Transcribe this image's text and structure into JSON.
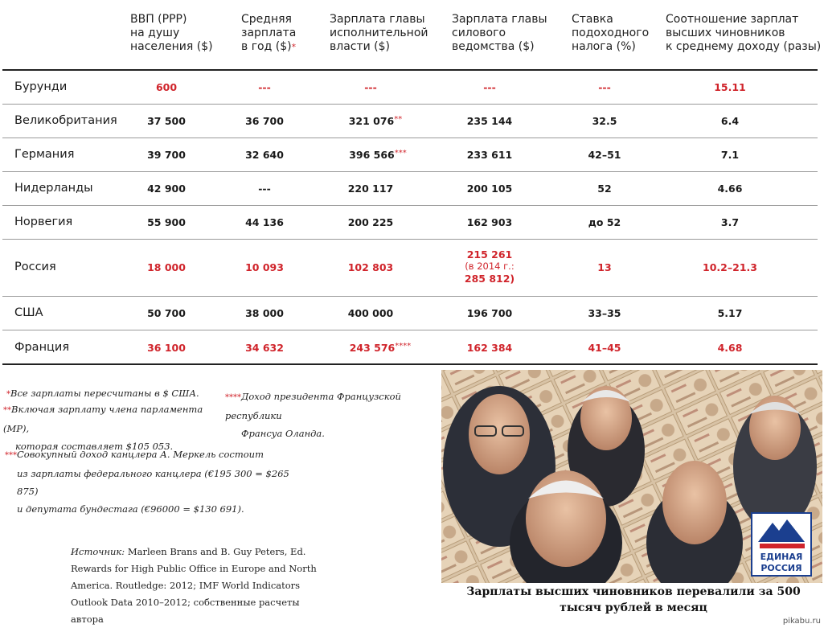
{
  "headers": [
    [
      "ВВП  (PPP)",
      "на душу",
      "населения ($)"
    ],
    [
      "Средняя",
      "зарплата",
      "в год ($)"
    ],
    [
      "Зарплата главы",
      "исполнительной",
      "власти ($)"
    ],
    [
      "Зарплата главы",
      "силового",
      "ведомства ($)"
    ],
    [
      "Ставка",
      "подоходного",
      "налога (%)"
    ],
    [
      "Соотношение зарплат",
      "высших чиновников",
      "к среднему доходу (разы)"
    ]
  ],
  "header_star": "*",
  "rows": [
    {
      "country": "Бурунди",
      "gdp": "600",
      "avg": "---",
      "exec": "---",
      "exec_star": "",
      "sec": "---",
      "tax": "---",
      "ratio": "15.11"
    },
    {
      "country": "Великобритания",
      "gdp": "37 500",
      "avg": "36 700",
      "exec": "321 076",
      "exec_star": "**",
      "sec": "235 144",
      "tax": "32.5",
      "ratio": "6.4"
    },
    {
      "country": "Германия",
      "gdp": "39 700",
      "avg": "32 640",
      "exec": "396 566",
      "exec_star": "***",
      "sec": "233 611",
      "tax": "42–51",
      "ratio": "7.1"
    },
    {
      "country": "Нидерланды",
      "gdp": "42 900",
      "avg": "---",
      "exec": "220 117",
      "exec_star": "",
      "sec": "200 105",
      "tax": "52",
      "ratio": "4.66"
    },
    {
      "country": "Норвегия",
      "gdp": "55 900",
      "avg": "44 136",
      "exec": "200 225",
      "exec_star": "",
      "sec": "162 903",
      "tax": "до 52",
      "ratio": "3.7"
    },
    {
      "country": "Россия",
      "gdp": "18 000",
      "avg": "10 093",
      "exec": "102 803",
      "exec_star": "",
      "sec": "215 261",
      "sec_line2": "(в 2014 г.:",
      "sec_line3": "285 812)",
      "tax": "13",
      "ratio": "10.2–21.3"
    },
    {
      "country": "США",
      "gdp": "50 700",
      "avg": "38 000",
      "exec": "400 000",
      "exec_star": "",
      "sec": "196 700",
      "tax": "33–35",
      "ratio": "5.17"
    },
    {
      "country": "Франция",
      "gdp": "36 100",
      "avg": "34 632",
      "exec": "243 576",
      "exec_star": "****",
      "sec": "162 384",
      "tax": "41–45",
      "ratio": "4.68"
    }
  ],
  "colors": {
    "red": "#d0242b",
    "text": "#1a1a1a"
  },
  "footnotes": {
    "f1_star": "*",
    "f1": "Все зарплаты пересчитаны в $ США.",
    "f2_star": "**",
    "f2_l1": "Включая зарплату члена парламента (MP),",
    "f2_l2": "которая составляет $105 053.",
    "f3_star": "***",
    "f3_l1": "Совокупный доход канцлера А. Меркель состоит",
    "f3_l2": "из зарплаты федерального канцлера (€195 300 = $265 875)",
    "f3_l3": "и депутата бундестага (€96000 = $130 691).",
    "f4_star": "****",
    "f4_l1": "Доход президента Французской республики",
    "f4_l2": "Франсуа Оланда."
  },
  "source": {
    "label": "Источник:",
    "l1": "Marleen Brans and B. Guy Peters, Ed.",
    "l2": "Rewards for High Public Office in Europe and North",
    "l3": "America. Routledge: 2012; IMF World Indicators",
    "l4": "Outlook Data 2010–2012; собственные расчеты автора"
  },
  "photo": {
    "logo_l1": "ЕДИНАЯ",
    "logo_l2": "РОССИЯ",
    "caption_l1": "Зарплаты высших чиновников перевалили за 500",
    "caption_l2": "тысяч рублей в месяц"
  },
  "watermark": "pikabu.ru"
}
